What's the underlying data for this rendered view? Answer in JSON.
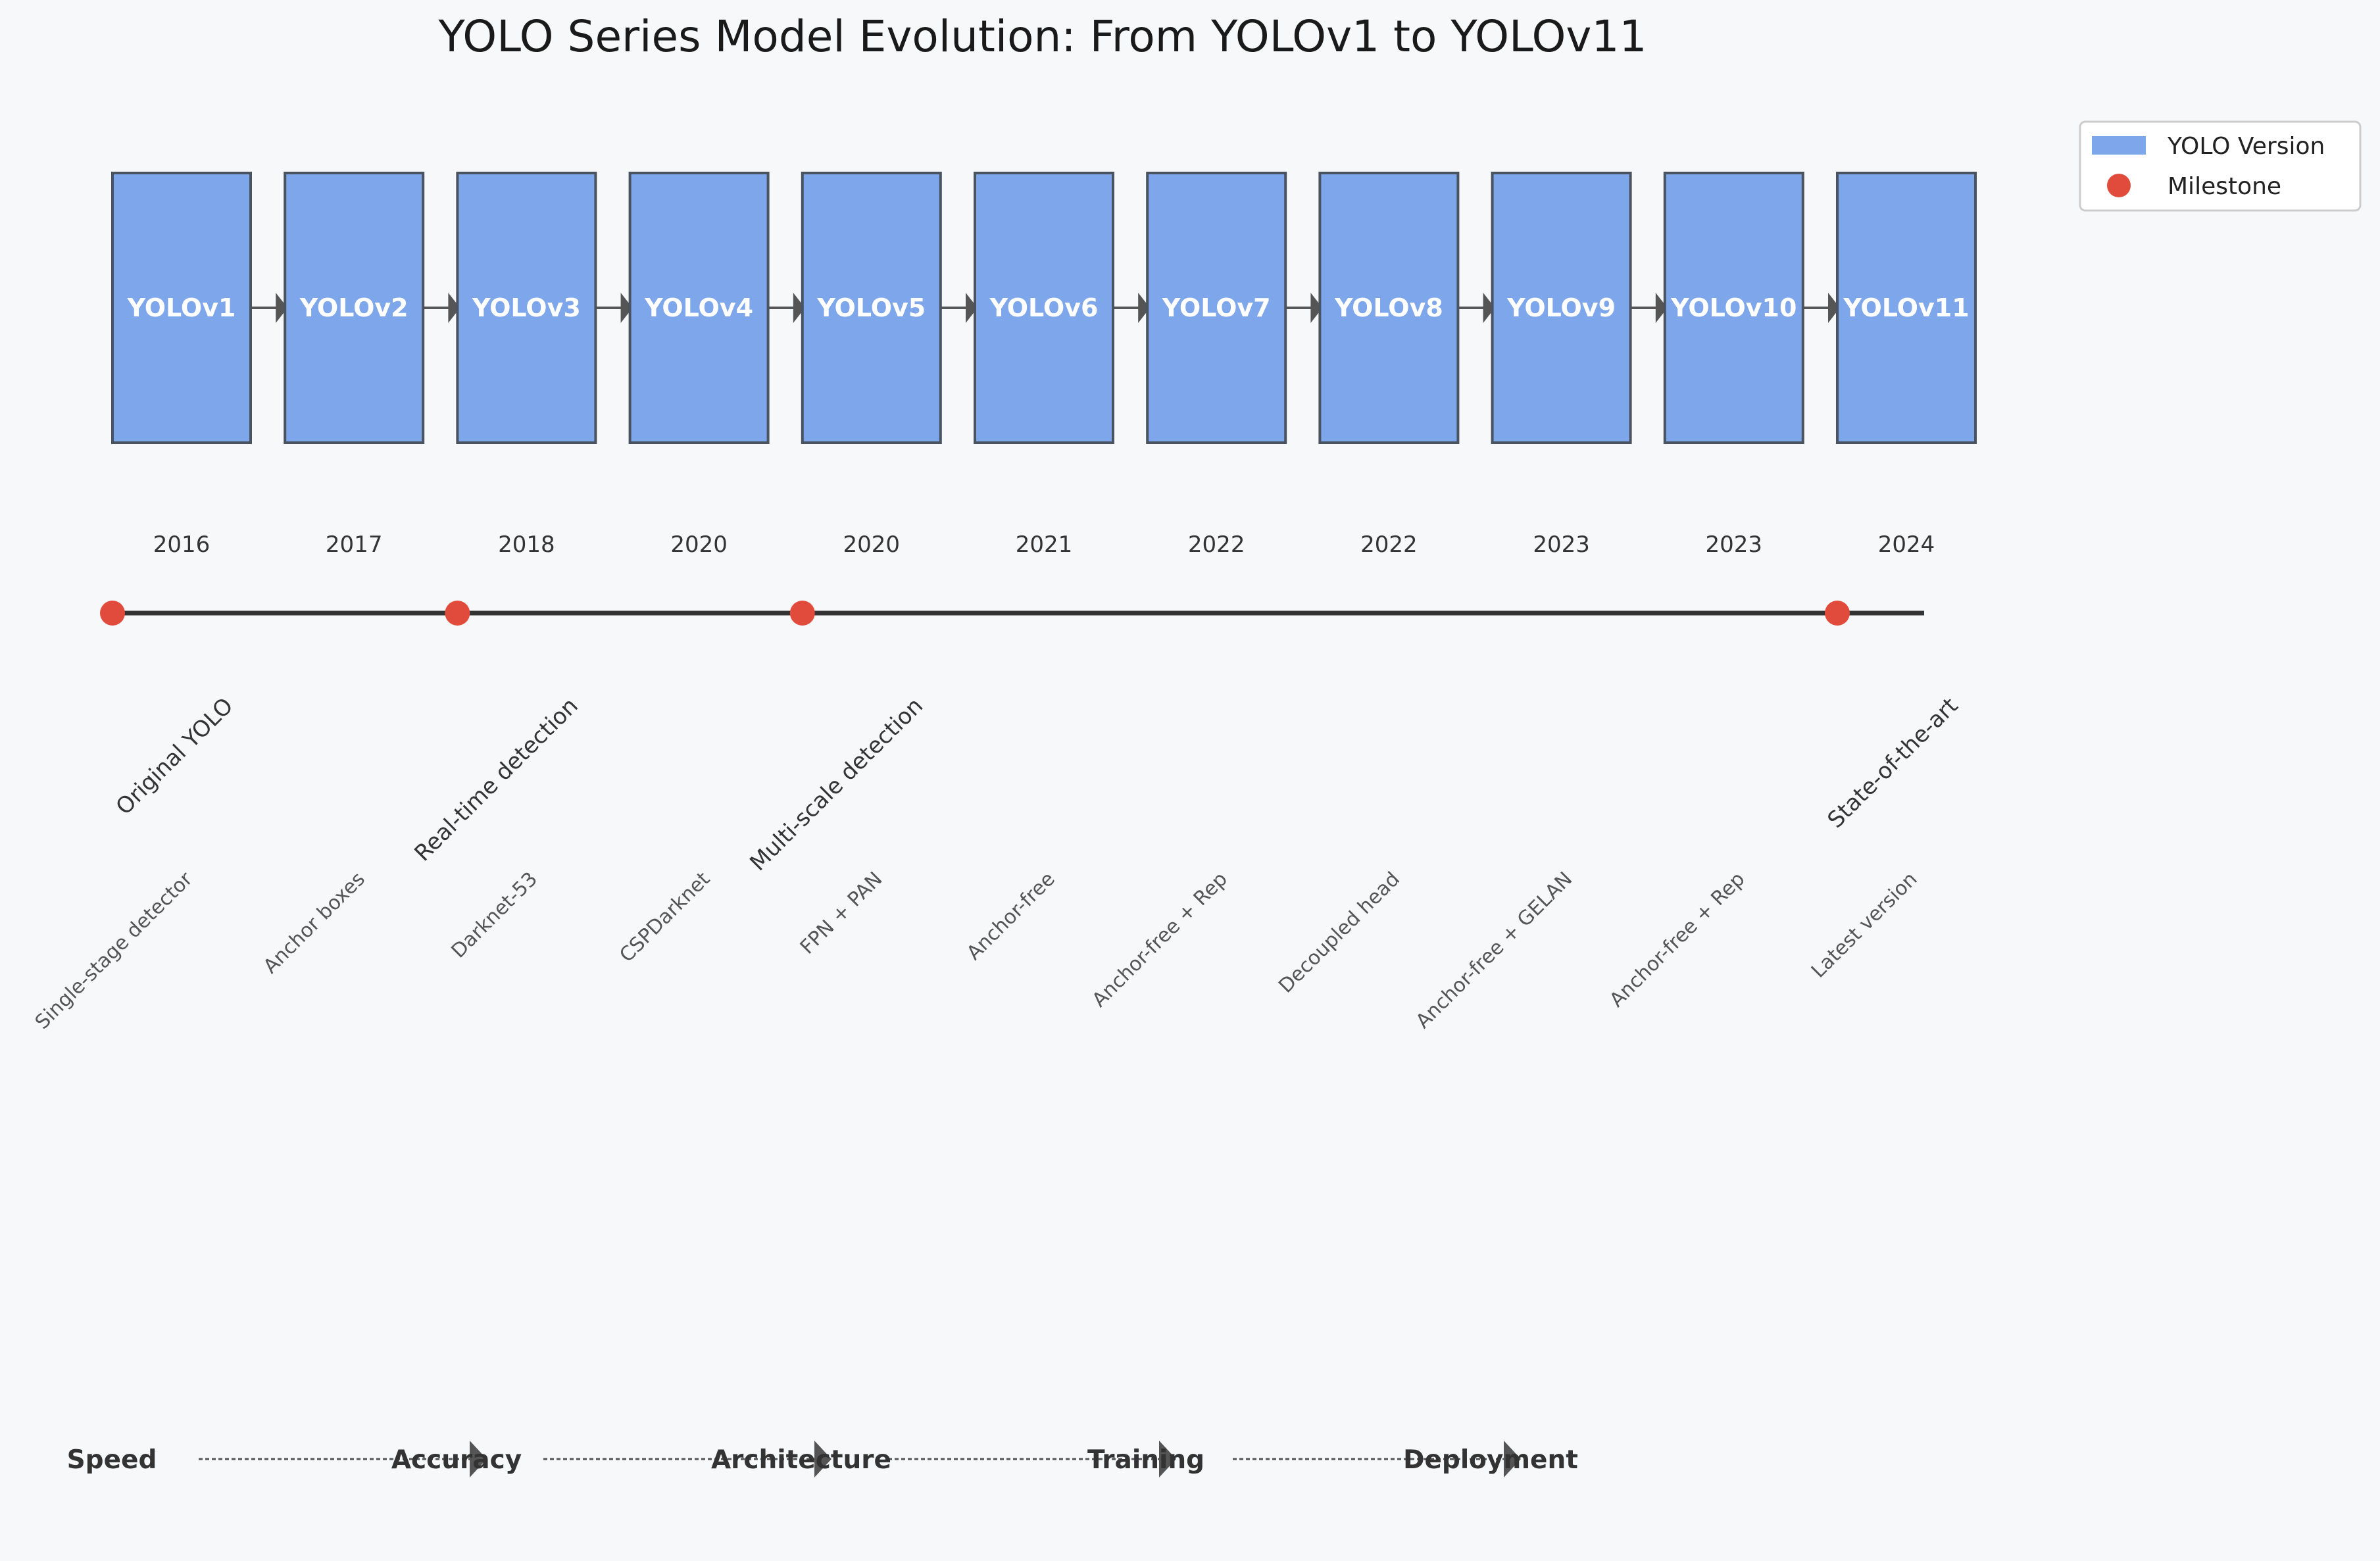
{
  "title": "YOLO Series Model Evolution: From YOLOv1 to YOLOv11",
  "colors": {
    "box_fill": "#7ea6eb",
    "box_stroke": "#4a5360",
    "arrow": "#555555",
    "timeline": "#333333",
    "milestone": "#e14b3b",
    "background": "#f7f8fa"
  },
  "versions": [
    {
      "name": "YOLOv1",
      "year": "2016",
      "feature": "Single-stage detector"
    },
    {
      "name": "YOLOv2",
      "year": "2017",
      "feature": "Anchor boxes"
    },
    {
      "name": "YOLOv3",
      "year": "2018",
      "feature": "Darknet-53"
    },
    {
      "name": "YOLOv4",
      "year": "2020",
      "feature": "CSPDarknet"
    },
    {
      "name": "YOLOv5",
      "year": "2020",
      "feature": "FPN + PAN"
    },
    {
      "name": "YOLOv6",
      "year": "2021",
      "feature": "Anchor-free"
    },
    {
      "name": "YOLOv7",
      "year": "2022",
      "feature": "Anchor-free + Rep"
    },
    {
      "name": "YOLOv8",
      "year": "2022",
      "feature": "Decoupled head"
    },
    {
      "name": "YOLOv9",
      "year": "2023",
      "feature": "Anchor-free + GELAN"
    },
    {
      "name": "YOLOv10",
      "year": "2023",
      "feature": "Anchor-free + Rep"
    },
    {
      "name": "YOLOv11",
      "year": "2024",
      "feature": "Latest version"
    }
  ],
  "milestones": [
    {
      "version_index": 0,
      "label": "Original YOLO"
    },
    {
      "version_index": 2,
      "label": "Real-time detection"
    },
    {
      "version_index": 4,
      "label": "Multi-scale detection"
    },
    {
      "version_index": 10,
      "label": "State-of-the-art"
    }
  ],
  "flow": [
    "Speed",
    "Accuracy",
    "Architecture",
    "Training",
    "Deployment"
  ],
  "legend": {
    "items": [
      {
        "label": "YOLO Version",
        "kind": "box"
      },
      {
        "label": "Milestone",
        "kind": "dot"
      }
    ]
  }
}
